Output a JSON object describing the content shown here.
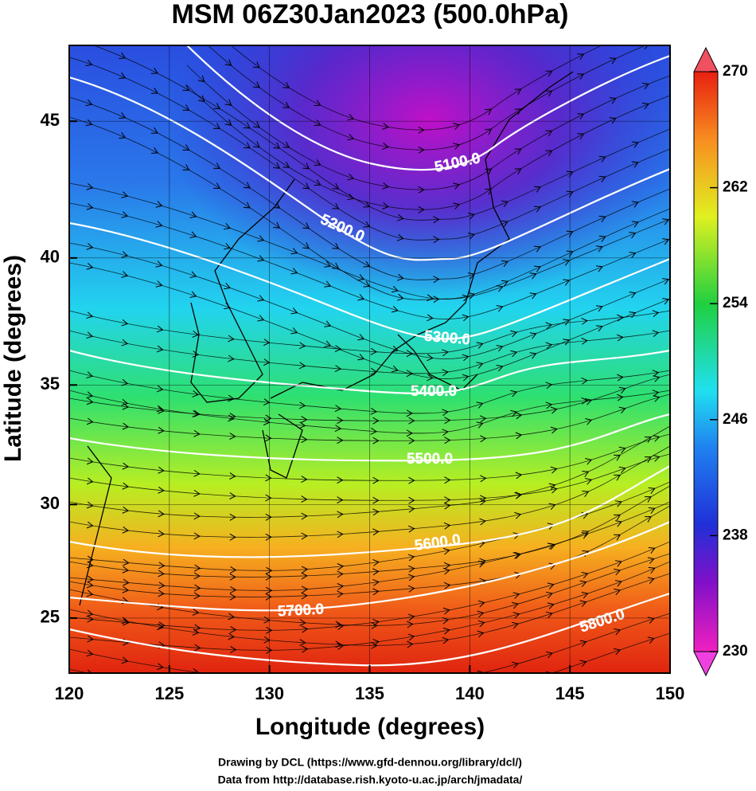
{
  "chart_data": {
    "type": "map",
    "projection": "mercator",
    "title": "MSM 06Z30Jan2023 (500.0hPa)",
    "x_label": "Longitude (degrees)",
    "y_label": "Latitude  (degrees)",
    "xlim": [
      120,
      150
    ],
    "xticks": [
      120,
      125,
      130,
      135,
      140,
      145,
      150
    ],
    "ylim": [
      22.5,
      47.6
    ],
    "yticks": [
      25,
      30,
      35,
      40,
      45
    ],
    "grid": true,
    "colorbar": {
      "lim": [
        230,
        270
      ],
      "ticks": [
        230,
        238,
        246,
        254,
        262,
        270
      ]
    },
    "contours": [
      {
        "value": 5100,
        "label": "5100.0"
      },
      {
        "value": 5200,
        "label": "5200.0"
      },
      {
        "value": 5300,
        "label": "5300.0"
      },
      {
        "value": 5400,
        "label": "5400.0"
      },
      {
        "value": 5500,
        "label": "5500.0"
      },
      {
        "value": 5600,
        "label": "5600.0"
      },
      {
        "value": 5700,
        "label": "5700.0"
      },
      {
        "value": 5800,
        "label": "5800.0"
      }
    ],
    "credits": [
      "Drawing by DCL (https://www.gfd-dennou.org/library/dcl/)",
      "Data from http://database.rish.kyoto-u.ac.jp/arch/jmadata/"
    ]
  }
}
